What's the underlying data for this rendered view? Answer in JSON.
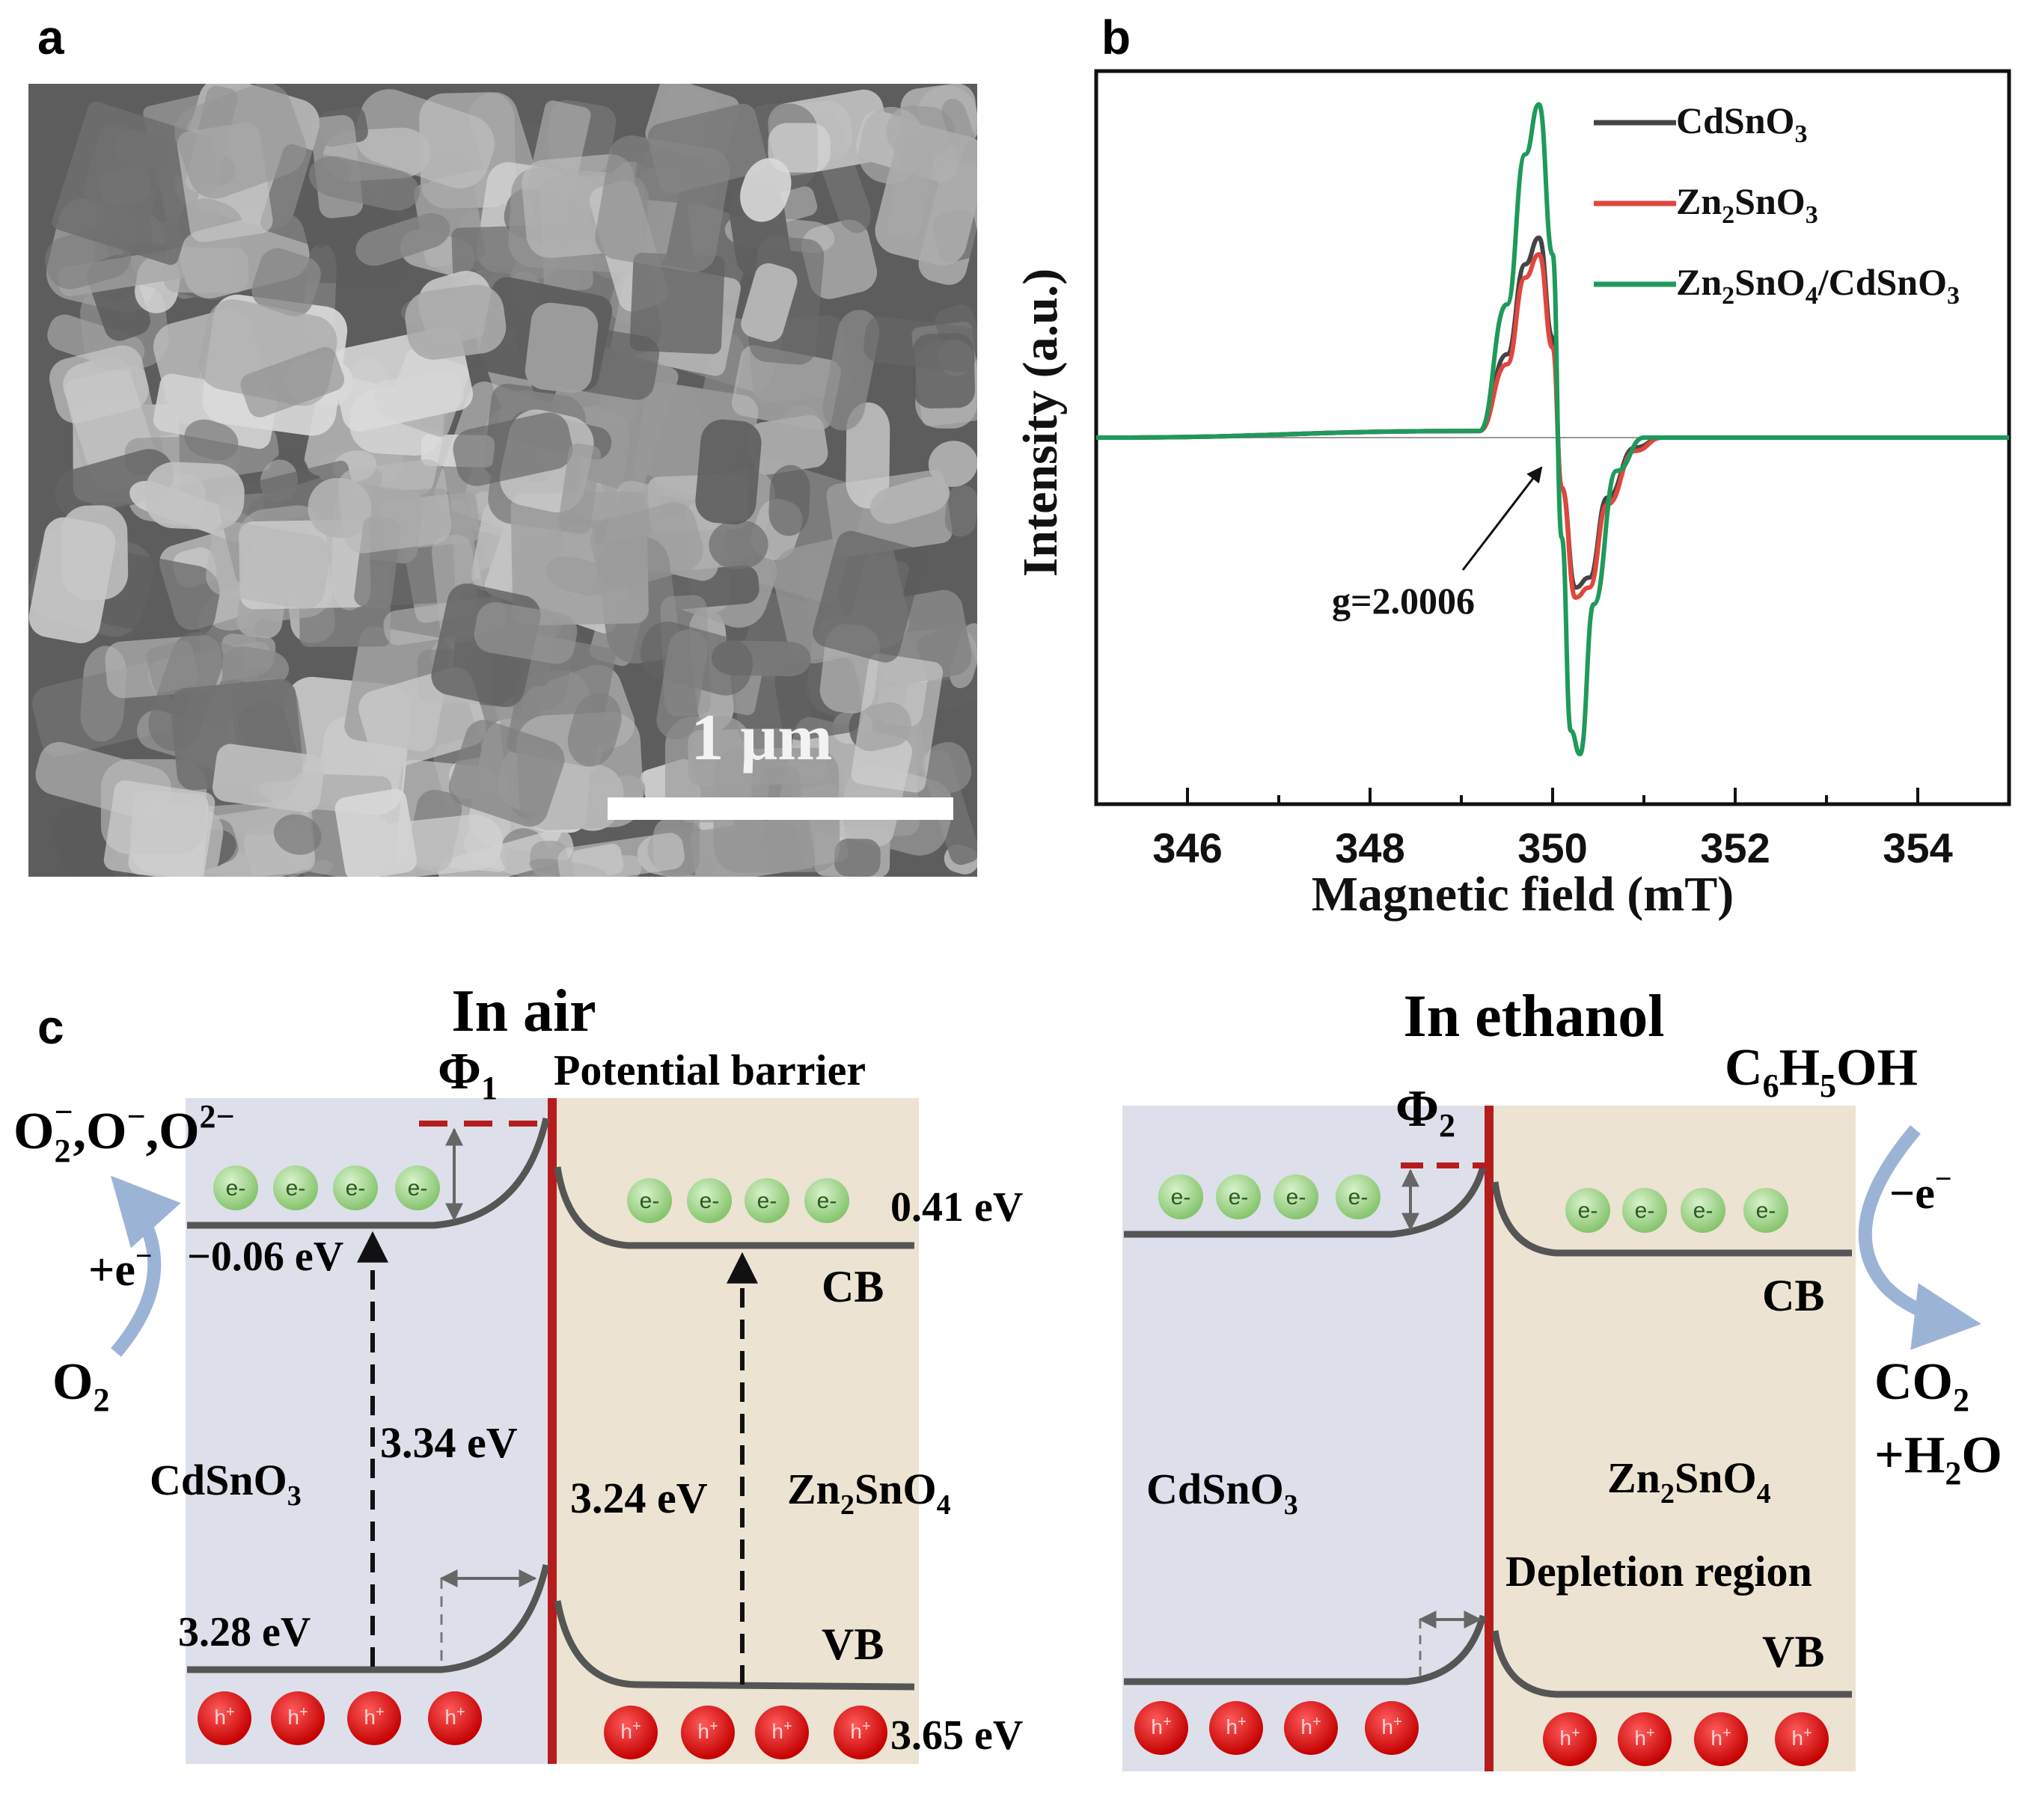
{
  "panels": {
    "a": {
      "label": "a",
      "scale_bar": "1 μm"
    },
    "b": {
      "label": "b",
      "annotation": "g=2.0006"
    },
    "c": {
      "label": "c",
      "left": {
        "title": "In air",
        "phi": "Φ",
        "phi_sub": "1",
        "barrier_label": "Potential barrier",
        "species": {
          "o2a": "O",
          "o2a_sub": "2",
          "o2a_sup": "−",
          "mid": ",O",
          "mid_sup": "−",
          "o2b": ",O",
          "o2b_sup": "2−"
        },
        "plus_e": "+e",
        "plus_e_sup": "−",
        "o2": "O",
        "o2_sub": "2",
        "cb_left_energy": "−0.06 eV",
        "cb_right_energy": "0.41 eV",
        "cb_label": "CB",
        "vb_label": "VB",
        "gap_left": "3.34 eV",
        "gap_right": "3.24 eV",
        "vb_left_energy": "3.28 eV",
        "vb_right_energy": "3.65 eV",
        "material_left": {
          "a": "CdSnO",
          "sub": "3"
        },
        "material_right": {
          "a": "Zn",
          "sub1": "2",
          "b": "SnO",
          "sub2": "4"
        }
      },
      "right": {
        "title": "In ethanol",
        "phi": "Φ",
        "phi_sub": "2",
        "reactant": {
          "a": "C",
          "s1": "6",
          "b": "H",
          "s2": "5",
          "c": "OH"
        },
        "minus_e": "−e",
        "minus_e_sup": "−",
        "product1": {
          "a": "CO",
          "sub": "2"
        },
        "product2": {
          "a": "+H",
          "sub": "2",
          "b": "O"
        },
        "cb_label": "CB",
        "vb_label": "VB",
        "material_left": {
          "a": "CdSnO",
          "sub": "3"
        },
        "material_right": {
          "a": "Zn",
          "sub1": "2",
          "b": "SnO",
          "sub2": "4"
        },
        "depletion_label": "Depletion region"
      },
      "electron_label": "e-",
      "hole_label": "h",
      "hole_sup": "+"
    }
  },
  "colors": {
    "cdsno3_region": "#dde0ea",
    "zn2sno4_region": "#ece3d3",
    "junction": "#b51d1d",
    "band_line": "#555555",
    "electron": "#9fd58a",
    "hole": "#e01515",
    "arrow_blue": "#9bb4d6",
    "cdsno3_line": "#444444",
    "zn2sno3_line": "#e0463d",
    "composite_line": "#1e9a5a"
  },
  "chart_data": {
    "type": "line",
    "title": "",
    "xlabel": "Magnetic field (mT)",
    "ylabel": "Intensity (a.u.)",
    "xlim": [
      345,
      355
    ],
    "ylim": [
      -1.1,
      1.1
    ],
    "x_ticks": [
      346,
      348,
      350,
      352,
      354
    ],
    "grid": false,
    "legend_position": "top-right",
    "series": [
      {
        "name": "CdSnO3",
        "legend": {
          "a": "CdSnO",
          "sub": "3"
        },
        "color": "#444444",
        "x": [
          345,
          349.2,
          349.5,
          349.7,
          349.85,
          350.0,
          350.1,
          350.25,
          350.4,
          350.6,
          350.9,
          351.2,
          355
        ],
        "y": [
          0,
          0.02,
          0.25,
          0.52,
          0.6,
          0.3,
          -0.15,
          -0.45,
          -0.42,
          -0.18,
          -0.03,
          0,
          0
        ]
      },
      {
        "name": "Zn2SnO3",
        "legend": {
          "a": "Zn",
          "sub1": "2",
          "b": "SnO",
          "sub2": "3"
        },
        "color": "#e0463d",
        "x": [
          345,
          349.2,
          349.5,
          349.7,
          349.85,
          350.0,
          350.1,
          350.25,
          350.4,
          350.6,
          350.9,
          351.2,
          355
        ],
        "y": [
          0,
          0.02,
          0.22,
          0.48,
          0.55,
          0.27,
          -0.15,
          -0.48,
          -0.45,
          -0.2,
          -0.04,
          0,
          0
        ]
      },
      {
        "name": "Zn2SnO4/CdSnO3",
        "legend": {
          "a": "Zn",
          "sub1": "2",
          "b": "SnO",
          "sub2": "4",
          "c": "/CdSnO",
          "sub3": "3"
        },
        "color": "#1e9a5a",
        "x": [
          345,
          349.2,
          349.5,
          349.7,
          349.85,
          350.0,
          350.1,
          350.2,
          350.3,
          350.45,
          350.7,
          351.0,
          355
        ],
        "y": [
          0,
          0.02,
          0.4,
          0.85,
          1.0,
          0.55,
          -0.3,
          -0.88,
          -0.95,
          -0.5,
          -0.1,
          0,
          0
        ]
      }
    ]
  }
}
